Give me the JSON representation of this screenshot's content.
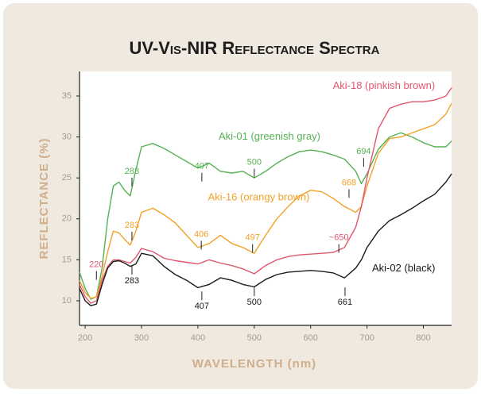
{
  "chart_data": {
    "type": "line",
    "title": "UV-Vis-NIR Reflectance Spectra",
    "x_label": "WAVELENGTH (nm)",
    "y_label": "REFLECTANCE (%)",
    "xlim": [
      190,
      850
    ],
    "ylim": [
      7,
      38
    ],
    "xticks": [
      200,
      300,
      400,
      500,
      600,
      700,
      800
    ],
    "yticks": [
      10,
      15,
      20,
      25,
      30,
      35
    ],
    "grid": false,
    "x": [
      190,
      200,
      210,
      220,
      230,
      240,
      250,
      260,
      270,
      280,
      290,
      300,
      320,
      340,
      360,
      380,
      400,
      420,
      440,
      460,
      480,
      500,
      520,
      540,
      560,
      580,
      600,
      620,
      640,
      660,
      680,
      690,
      700,
      720,
      740,
      760,
      780,
      800,
      820,
      840,
      850
    ],
    "series": [
      {
        "name": "Aki-01 (greenish gray)",
        "color": "#55b254",
        "label_at": [
          527,
          30
        ],
        "values": [
          13.5,
          11.5,
          10.2,
          10.5,
          14,
          20,
          24,
          24.5,
          23.5,
          22.8,
          26,
          28.8,
          29.2,
          28.6,
          27.8,
          27,
          26.2,
          26.8,
          25.8,
          25.6,
          25.8,
          25.0,
          25.8,
          26.8,
          27.6,
          28.2,
          28.4,
          28.2,
          27.8,
          27.3,
          25.8,
          24.3,
          25.5,
          28.5,
          30,
          30.5,
          30,
          29.3,
          28.8,
          28.8,
          29.5
        ]
      },
      {
        "name": "Aki-16 (orangy brown)",
        "color": "#f2a127",
        "label_at": [
          508,
          22.6
        ],
        "values": [
          12.5,
          11,
          10.3,
          10.5,
          13,
          16,
          18.5,
          18.3,
          17.5,
          16.8,
          18.5,
          20.8,
          21.3,
          20.5,
          19.5,
          18,
          16.5,
          17,
          18,
          17,
          16.5,
          15.8,
          18,
          20,
          21.5,
          22.8,
          23.5,
          23.3,
          22.5,
          21.5,
          20.8,
          21.5,
          24,
          28,
          29.8,
          30,
          30.5,
          31,
          31.5,
          32.8,
          34.1
        ]
      },
      {
        "name": "Aki-18 (pinkish brown)",
        "color": "#e2566d",
        "label_at": [
          730,
          36.2
        ],
        "values": [
          12,
          10.5,
          9.7,
          10,
          12.5,
          14.2,
          15,
          15,
          14.8,
          14.6,
          15.3,
          16.4,
          16,
          15.2,
          14.9,
          14.7,
          14.5,
          15,
          14.6,
          14.3,
          13.9,
          13.3,
          14.3,
          15,
          15.4,
          15.6,
          15.7,
          15.8,
          15.9,
          16.5,
          19,
          21.5,
          25,
          31,
          33.5,
          34,
          34.3,
          34.3,
          34.5,
          35,
          36
        ]
      },
      {
        "name": "Aki-02 (black)",
        "color": "#1a1a1a",
        "label_at": [
          765,
          13.9
        ],
        "values": [
          11.5,
          10,
          9.4,
          9.6,
          12,
          14,
          14.8,
          14.9,
          14.6,
          14.2,
          14.5,
          15.8,
          15.5,
          14.2,
          13.2,
          12.5,
          11.6,
          12,
          12.8,
          12.5,
          12,
          11.7,
          12.6,
          13.2,
          13.5,
          13.6,
          13.7,
          13.6,
          13.4,
          12.8,
          14,
          15,
          16.5,
          18.5,
          19.8,
          20.5,
          21.3,
          22.2,
          23,
          24.5,
          25.5
        ]
      }
    ],
    "annotations": [
      {
        "text": "283",
        "x": 283,
        "y": 25.8,
        "color": "#55b254",
        "side": "above"
      },
      {
        "text": "407",
        "x": 407,
        "y": 26.4,
        "color": "#55b254",
        "side": "above"
      },
      {
        "text": "500",
        "x": 500,
        "y": 26.9,
        "color": "#55b254",
        "side": "above"
      },
      {
        "text": "694",
        "x": 694,
        "y": 28.2,
        "color": "#55b254",
        "side": "above"
      },
      {
        "text": "283",
        "x": 283,
        "y": 19.2,
        "color": "#f2a127",
        "side": "above"
      },
      {
        "text": "406",
        "x": 406,
        "y": 18.1,
        "color": "#f2a127",
        "side": "above"
      },
      {
        "text": "497",
        "x": 497,
        "y": 17.7,
        "color": "#f2a127",
        "side": "above"
      },
      {
        "text": "668",
        "x": 668,
        "y": 24.4,
        "color": "#f2a127",
        "side": "above"
      },
      {
        "text": "~650",
        "x": 650,
        "y": 17.7,
        "color": "#e2566d",
        "side": "above"
      },
      {
        "text": "220",
        "x": 220,
        "y": 14.4,
        "color": "#e2566d",
        "side": "above"
      },
      {
        "text": "283",
        "x": 283,
        "y": 12.4,
        "color": "#1a1a1a",
        "side": "below"
      },
      {
        "text": "407",
        "x": 407,
        "y": 9.3,
        "color": "#1a1a1a",
        "side": "below"
      },
      {
        "text": "500",
        "x": 500,
        "y": 9.8,
        "color": "#1a1a1a",
        "side": "below"
      },
      {
        "text": "661",
        "x": 661,
        "y": 9.8,
        "color": "#1a1a1a",
        "side": "below"
      }
    ]
  }
}
